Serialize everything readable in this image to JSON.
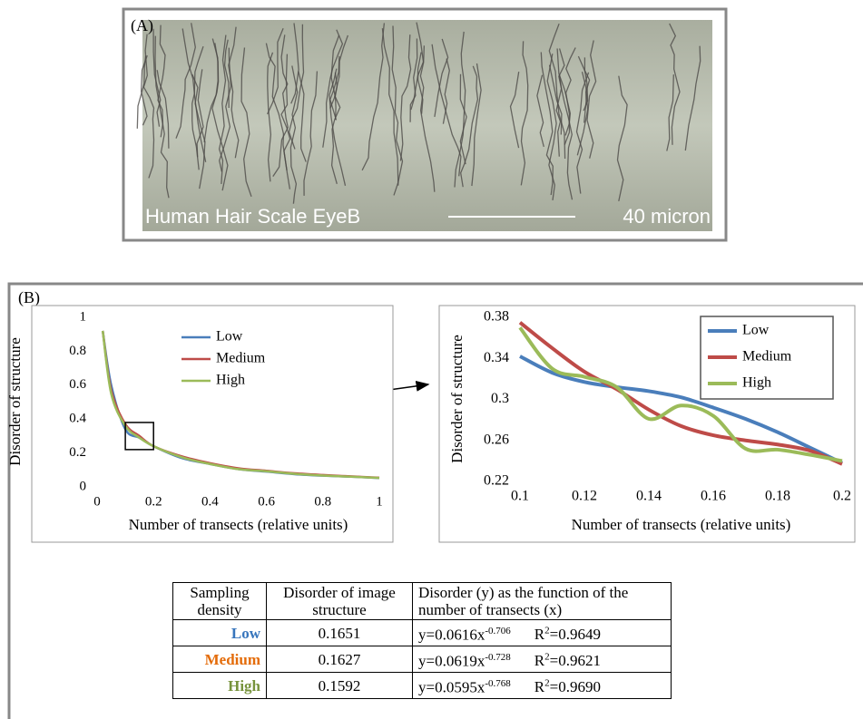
{
  "panel_a": {
    "label": "(A)",
    "caption": "Human Hair Scale EyeB",
    "scale": "40 micron"
  },
  "panel_b": {
    "label": "(B)"
  },
  "chart_data": [
    {
      "type": "line",
      "xlabel": "Number of transects (relative units)",
      "ylabel": "Disorder of structure",
      "x": [
        0.02,
        0.05,
        0.1,
        0.15,
        0.2,
        0.3,
        0.4,
        0.5,
        0.6,
        0.7,
        0.8,
        0.9,
        1.0
      ],
      "series": [
        {
          "name": "Low",
          "color": "#4a7ebb",
          "values": [
            0.92,
            0.6,
            0.34,
            0.29,
            0.24,
            0.17,
            0.135,
            0.105,
            0.09,
            0.075,
            0.066,
            0.06,
            0.052
          ]
        },
        {
          "name": "Medium",
          "color": "#be4b48",
          "values": [
            0.92,
            0.57,
            0.37,
            0.3,
            0.24,
            0.18,
            0.14,
            0.11,
            0.095,
            0.08,
            0.07,
            0.062,
            0.054
          ]
        },
        {
          "name": "High",
          "color": "#9bbb59",
          "values": [
            0.92,
            0.55,
            0.36,
            0.29,
            0.24,
            0.175,
            0.135,
            0.105,
            0.092,
            0.077,
            0.067,
            0.06,
            0.053
          ]
        }
      ],
      "xlim": [
        0,
        1
      ],
      "ylim": [
        0,
        1
      ],
      "xticks": [
        0,
        0.2,
        0.4,
        0.6,
        0.8,
        1
      ],
      "yticks": [
        0,
        0.2,
        0.4,
        0.6,
        0.8,
        1
      ]
    },
    {
      "type": "line",
      "xlabel": "Number of transects (relative units)",
      "ylabel": "Disorder of structure",
      "x": [
        0.1,
        0.11,
        0.12,
        0.13,
        0.14,
        0.15,
        0.16,
        0.17,
        0.18,
        0.19,
        0.2
      ],
      "series": [
        {
          "name": "Low",
          "color": "#4a7ebb",
          "values": [
            0.342,
            0.326,
            0.317,
            0.312,
            0.308,
            0.302,
            0.292,
            0.281,
            0.268,
            0.253,
            0.238
          ]
        },
        {
          "name": "Medium",
          "color": "#be4b48",
          "values": [
            0.375,
            0.35,
            0.327,
            0.31,
            0.29,
            0.274,
            0.265,
            0.26,
            0.256,
            0.25,
            0.237
          ]
        },
        {
          "name": "High",
          "color": "#9bbb59",
          "values": [
            0.37,
            0.33,
            0.322,
            0.312,
            0.281,
            0.294,
            0.284,
            0.252,
            0.251,
            0.246,
            0.24
          ]
        }
      ],
      "xlim": [
        0.1,
        0.2
      ],
      "ylim": [
        0.22,
        0.38
      ],
      "xticks": [
        0.1,
        0.12,
        0.14,
        0.16,
        0.18,
        0.2
      ],
      "yticks": [
        0.22,
        0.26,
        0.3,
        0.34,
        0.38
      ]
    }
  ],
  "table": {
    "header": [
      "Sampling density",
      "Disorder of image structure",
      "Disorder (y) as the function of the number of transects (x)"
    ],
    "rows": [
      {
        "density": "Low",
        "color": "#3775bc",
        "disorder": "0.1651",
        "equation": "y=0.0616x",
        "exponent": "-0.706",
        "r_label": "R",
        "r_sup": "2",
        "r_value": "=0.9649"
      },
      {
        "density": "Medium",
        "color": "#e46c0a",
        "disorder": "0.1627",
        "equation": "y=0.0619x",
        "exponent": "-0.728",
        "r_label": "R",
        "r_sup": "2",
        "r_value": "=0.9621"
      },
      {
        "density": "High",
        "color": "#77933c",
        "disorder": "0.1592",
        "equation": "y=0.0595x",
        "exponent": "-0.768",
        "r_label": "R",
        "r_sup": "2",
        "r_value": "=0.9690"
      }
    ]
  }
}
